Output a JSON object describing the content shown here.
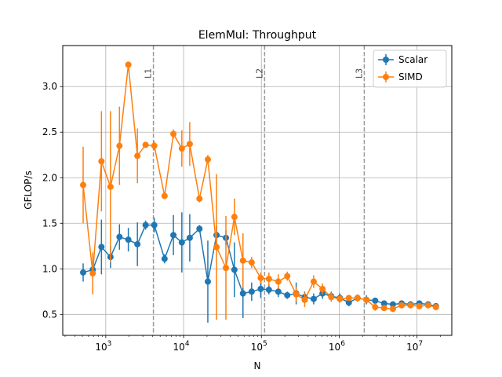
{
  "chart_data": {
    "type": "line",
    "title": "ElemMul: Throughput",
    "xlabel": "N",
    "ylabel": "GFLOP/s",
    "xscale": "log",
    "xlim": [
      280,
      28000000
    ],
    "ylim": [
      0.27,
      3.45
    ],
    "grid": true,
    "legend_position": "top-right",
    "x_ticks": [
      {
        "value": 1000,
        "base": "10",
        "exp": "3"
      },
      {
        "value": 10000,
        "base": "10",
        "exp": "4"
      },
      {
        "value": 100000,
        "base": "10",
        "exp": "5"
      },
      {
        "value": 1000000,
        "base": "10",
        "exp": "6"
      },
      {
        "value": 10000000,
        "base": "10",
        "exp": "7"
      }
    ],
    "y_ticks": [
      "0.5",
      "1.0",
      "1.5",
      "2.0",
      "2.5",
      "3.0"
    ],
    "cache_lines": [
      {
        "label": "L1",
        "x": 4096
      },
      {
        "label": "L2",
        "x": 110000
      },
      {
        "label": "L3",
        "x": 2100000
      }
    ],
    "x": [
      512,
      680,
      880,
      1150,
      1500,
      1950,
      2550,
      3250,
      4200,
      5700,
      7400,
      9500,
      12000,
      16000,
      20500,
      26500,
      35000,
      45000,
      58000,
      75000,
      98000,
      125000,
      165000,
      215000,
      280000,
      360000,
      470000,
      610000,
      790000,
      1020000,
      1330000,
      1720000,
      2240000,
      2900000,
      3780000,
      4900000,
      6350000,
      8250000,
      10700000,
      13900000,
      17500000
    ],
    "series": [
      {
        "name": "Scalar",
        "color": "#1f77b4",
        "values": [
          0.96,
          0.99,
          1.24,
          1.13,
          1.35,
          1.32,
          1.27,
          1.48,
          1.48,
          1.11,
          1.37,
          1.29,
          1.34,
          1.44,
          0.86,
          1.37,
          1.34,
          0.99,
          0.73,
          0.75,
          0.78,
          0.77,
          0.75,
          0.71,
          0.73,
          0.69,
          0.67,
          0.73,
          0.7,
          0.68,
          0.63,
          0.68,
          0.66,
          0.65,
          0.62,
          0.61,
          0.62,
          0.61,
          0.62,
          0.61,
          0.59
        ],
        "errors": [
          0.1,
          0.09,
          0.3,
          0.12,
          0.14,
          0.13,
          0.24,
          0.05,
          0.08,
          0.05,
          0.22,
          0.33,
          0.26,
          0.04,
          0.45,
          0.1,
          0.08,
          0.3,
          0.27,
          0.1,
          0.1,
          0.05,
          0.06,
          0.04,
          0.12,
          0.06,
          0.06,
          0.06,
          0.05,
          0.05,
          0.04,
          0.04,
          0.05,
          0.03,
          0.03,
          0.02,
          0.02,
          0.02,
          0.02,
          0.02,
          0.02
        ]
      },
      {
        "name": "SIMD",
        "color": "#ff7f0e",
        "values": [
          1.92,
          0.95,
          2.18,
          1.9,
          2.35,
          3.24,
          2.24,
          2.36,
          2.35,
          1.8,
          2.48,
          2.32,
          2.37,
          1.77,
          2.2,
          1.24,
          1.01,
          1.57,
          1.09,
          1.07,
          0.9,
          0.89,
          0.86,
          0.92,
          0.72,
          0.66,
          0.86,
          0.78,
          0.69,
          0.67,
          0.68,
          0.68,
          0.66,
          0.58,
          0.57,
          0.56,
          0.6,
          0.6,
          0.59,
          0.6,
          0.58
        ],
        "errors": [
          0.42,
          0.23,
          0.55,
          0.83,
          0.43,
          0.03,
          0.3,
          0.03,
          0.05,
          0.03,
          0.05,
          0.2,
          0.24,
          0.04,
          0.05,
          0.8,
          0.57,
          0.2,
          0.3,
          0.06,
          0.06,
          0.07,
          0.08,
          0.05,
          0.08,
          0.08,
          0.07,
          0.06,
          0.05,
          0.04,
          0.03,
          0.04,
          0.03,
          0.04,
          0.03,
          0.03,
          0.02,
          0.02,
          0.02,
          0.02,
          0.02
        ]
      }
    ]
  }
}
